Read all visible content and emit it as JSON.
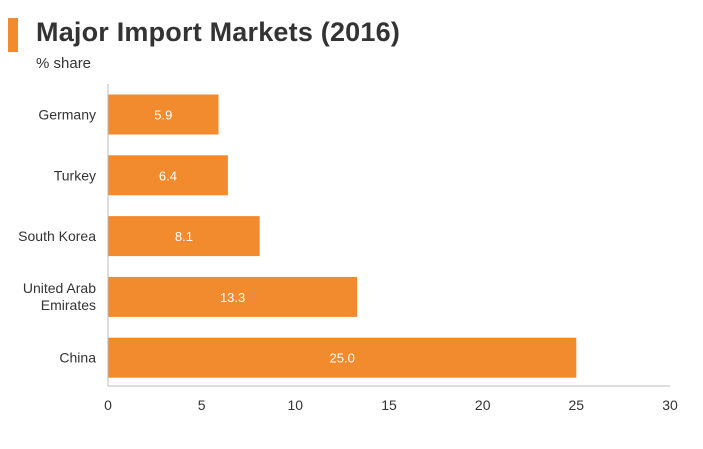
{
  "chart_data": {
    "type": "bar",
    "orientation": "horizontal",
    "title": "Major Import Markets (2016)",
    "subtitle": "% share",
    "categories": [
      "Germany",
      "Turkey",
      "South Korea",
      "United Arab Emirates",
      "China"
    ],
    "values": [
      5.9,
      6.4,
      8.1,
      13.3,
      25.0
    ],
    "value_labels": [
      "5.9",
      "6.4",
      "8.1",
      "13.3",
      "25.0"
    ],
    "xlim": [
      0,
      30
    ],
    "xticks": [
      0,
      5,
      10,
      15,
      20,
      25,
      30
    ],
    "xlabel": "",
    "ylabel": "",
    "grid": false,
    "legend": "none",
    "bar_color": "#f28a2e",
    "accent_color": "#f28a2e"
  }
}
